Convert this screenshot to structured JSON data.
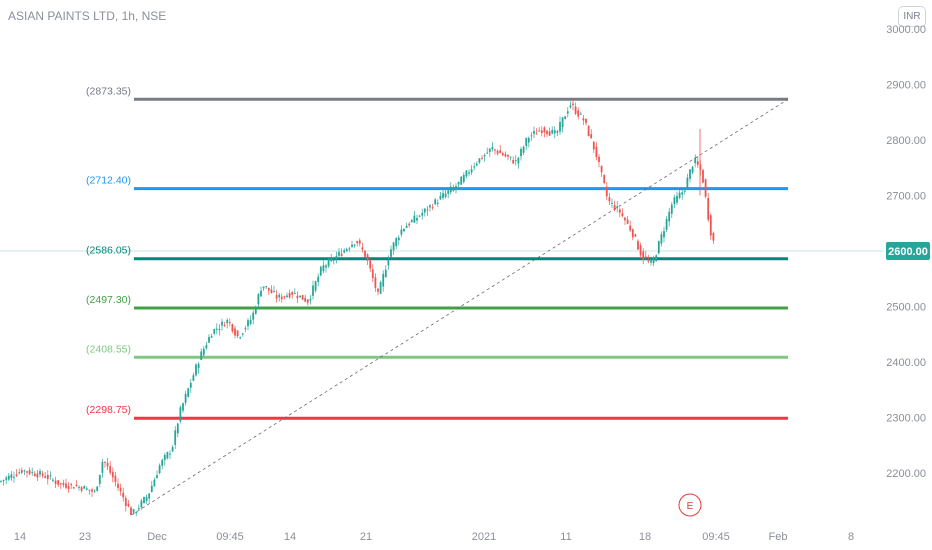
{
  "header": {
    "title": "ASIAN PAINTS LTD, 1h, NSE",
    "currency": "INR"
  },
  "chart_data": {
    "type": "candlestick",
    "title": "ASIAN PAINTS LTD, 1h, NSE",
    "ylim": [
      2100,
      3000
    ],
    "y_ticks": [
      2200,
      2300,
      2400,
      2500,
      2600,
      2700,
      2800,
      2900,
      3000
    ],
    "y_tick_labels": [
      "2200.00",
      "2300.00",
      "2400.00",
      "2500.00",
      "2600.00",
      "2700.00",
      "2800.00",
      "2900.00",
      "3000.00"
    ],
    "x_ticks": [
      "14",
      "23",
      "Dec",
      "09:45",
      "14",
      "21",
      "2021",
      "11",
      "18",
      "09:45",
      "Feb",
      "8"
    ],
    "current_price": {
      "value": 2600,
      "label": "2600.00",
      "color": "#26a69a"
    },
    "fib_levels": [
      {
        "label": "(2873.35)",
        "value": 2873.35,
        "color": "#787b86"
      },
      {
        "label": "(2712.40)",
        "value": 2712.4,
        "color": "#2196f3"
      },
      {
        "label": "(2586.05)",
        "value": 2586.05,
        "color": "#00897b"
      },
      {
        "label": "(2497.30)",
        "value": 2497.3,
        "color": "#43a047"
      },
      {
        "label": "(2408.55)",
        "value": 2408.55,
        "color": "#81c784"
      },
      {
        "label": "(2298.75)",
        "value": 2298.75,
        "color": "#f23645"
      }
    ],
    "trend_line": {
      "from": 2125,
      "to": 2873.35
    },
    "marker": {
      "label": "E",
      "color": "#e53935"
    },
    "colors": {
      "up": "#26a69a",
      "down": "#ef5350"
    },
    "series_anchors": [
      {
        "x": 0,
        "y": 2185
      },
      {
        "x": 22,
        "y": 2205
      },
      {
        "x": 45,
        "y": 2195
      },
      {
        "x": 60,
        "y": 2180
      },
      {
        "x": 80,
        "y": 2175
      },
      {
        "x": 95,
        "y": 2165
      },
      {
        "x": 103,
        "y": 2225
      },
      {
        "x": 112,
        "y": 2195
      },
      {
        "x": 122,
        "y": 2160
      },
      {
        "x": 132,
        "y": 2125
      },
      {
        "x": 148,
        "y": 2160
      },
      {
        "x": 160,
        "y": 2215
      },
      {
        "x": 172,
        "y": 2245
      },
      {
        "x": 180,
        "y": 2310
      },
      {
        "x": 190,
        "y": 2360
      },
      {
        "x": 200,
        "y": 2410
      },
      {
        "x": 212,
        "y": 2455
      },
      {
        "x": 228,
        "y": 2475
      },
      {
        "x": 238,
        "y": 2445
      },
      {
        "x": 252,
        "y": 2480
      },
      {
        "x": 262,
        "y": 2540
      },
      {
        "x": 278,
        "y": 2515
      },
      {
        "x": 292,
        "y": 2525
      },
      {
        "x": 308,
        "y": 2510
      },
      {
        "x": 322,
        "y": 2570
      },
      {
        "x": 340,
        "y": 2595
      },
      {
        "x": 356,
        "y": 2620
      },
      {
        "x": 366,
        "y": 2590
      },
      {
        "x": 378,
        "y": 2520
      },
      {
        "x": 390,
        "y": 2600
      },
      {
        "x": 402,
        "y": 2640
      },
      {
        "x": 420,
        "y": 2665
      },
      {
        "x": 440,
        "y": 2695
      },
      {
        "x": 458,
        "y": 2720
      },
      {
        "x": 476,
        "y": 2760
      },
      {
        "x": 492,
        "y": 2785
      },
      {
        "x": 506,
        "y": 2770
      },
      {
        "x": 516,
        "y": 2760
      },
      {
        "x": 528,
        "y": 2805
      },
      {
        "x": 542,
        "y": 2820
      },
      {
        "x": 556,
        "y": 2810
      },
      {
        "x": 570,
        "y": 2865
      },
      {
        "x": 584,
        "y": 2835
      },
      {
        "x": 596,
        "y": 2775
      },
      {
        "x": 608,
        "y": 2690
      },
      {
        "x": 620,
        "y": 2670
      },
      {
        "x": 632,
        "y": 2635
      },
      {
        "x": 642,
        "y": 2590
      },
      {
        "x": 652,
        "y": 2575
      },
      {
        "x": 662,
        "y": 2630
      },
      {
        "x": 672,
        "y": 2685
      },
      {
        "x": 684,
        "y": 2710
      },
      {
        "x": 694,
        "y": 2765
      },
      {
        "x": 702,
        "y": 2740
      },
      {
        "x": 710,
        "y": 2640
      },
      {
        "x": 716,
        "y": 2600
      }
    ]
  }
}
